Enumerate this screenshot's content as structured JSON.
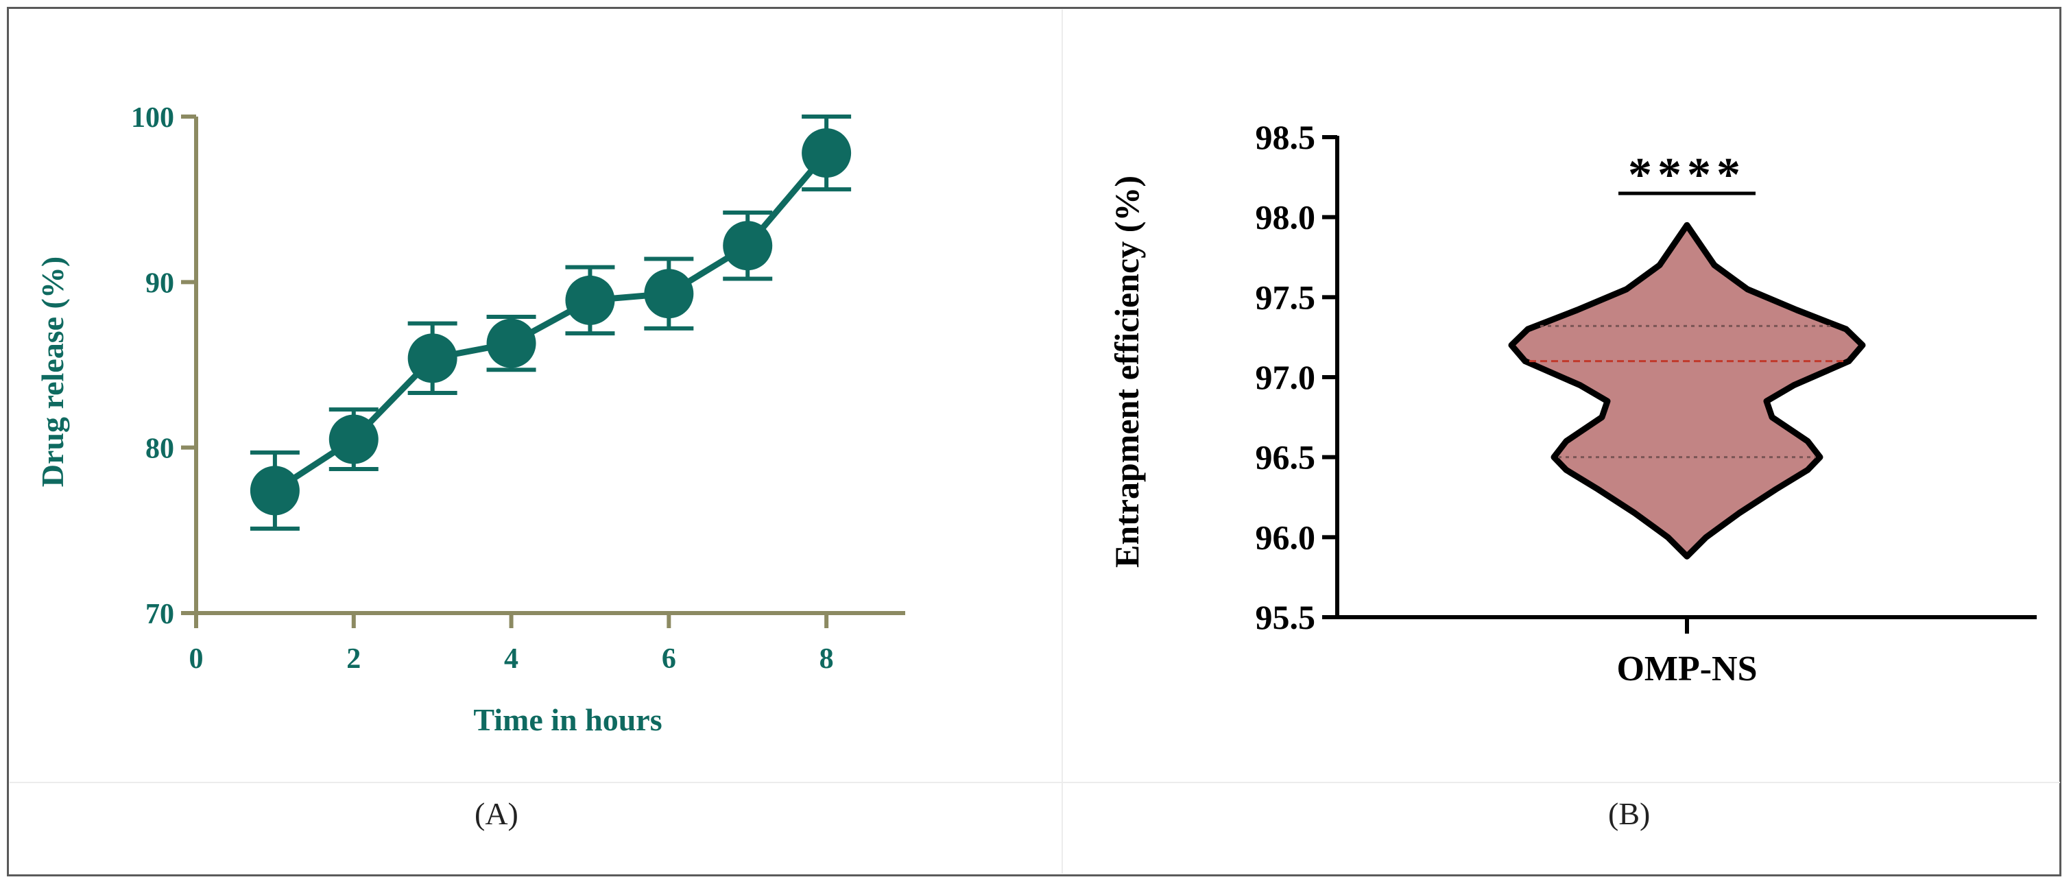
{
  "chart_data": [
    {
      "type": "line",
      "xlabel": "Time in hours",
      "ylabel": "Drug release (%)",
      "xlim": [
        0,
        9
      ],
      "ylim": [
        70,
        100
      ],
      "xticks": [
        0,
        2,
        4,
        6,
        8
      ],
      "yticks": [
        70,
        80,
        90,
        100
      ],
      "x": [
        1,
        2,
        3,
        4,
        5,
        6,
        7,
        8
      ],
      "y": [
        77.4,
        80.5,
        85.4,
        86.3,
        88.9,
        89.3,
        92.2,
        97.8
      ],
      "error": [
        2.3,
        1.8,
        2.1,
        1.6,
        2.0,
        2.1,
        2.0,
        2.2
      ],
      "color": "#0f6a60",
      "axis_color": "#8c8a62",
      "grid": false,
      "caption": "(A)"
    },
    {
      "type": "violin",
      "categories": [
        "OMP-NS"
      ],
      "ylabel": "Entrapment efficiency (%)",
      "ylim": [
        95.5,
        98.5
      ],
      "yticks": [
        "95.5",
        "96.0",
        "96.5",
        "97.0",
        "97.5",
        "98.0",
        "98.5"
      ],
      "ytick_values": [
        95.5,
        96.0,
        96.5,
        97.0,
        97.5,
        98.0,
        98.5
      ],
      "median": 97.1,
      "quartiles": [
        96.5,
        97.32
      ],
      "range": [
        95.88,
        97.95
      ],
      "significance": "****",
      "fill_color": "#c28484",
      "median_color": "#c0392b",
      "grid": false,
      "caption": "(B)"
    }
  ]
}
